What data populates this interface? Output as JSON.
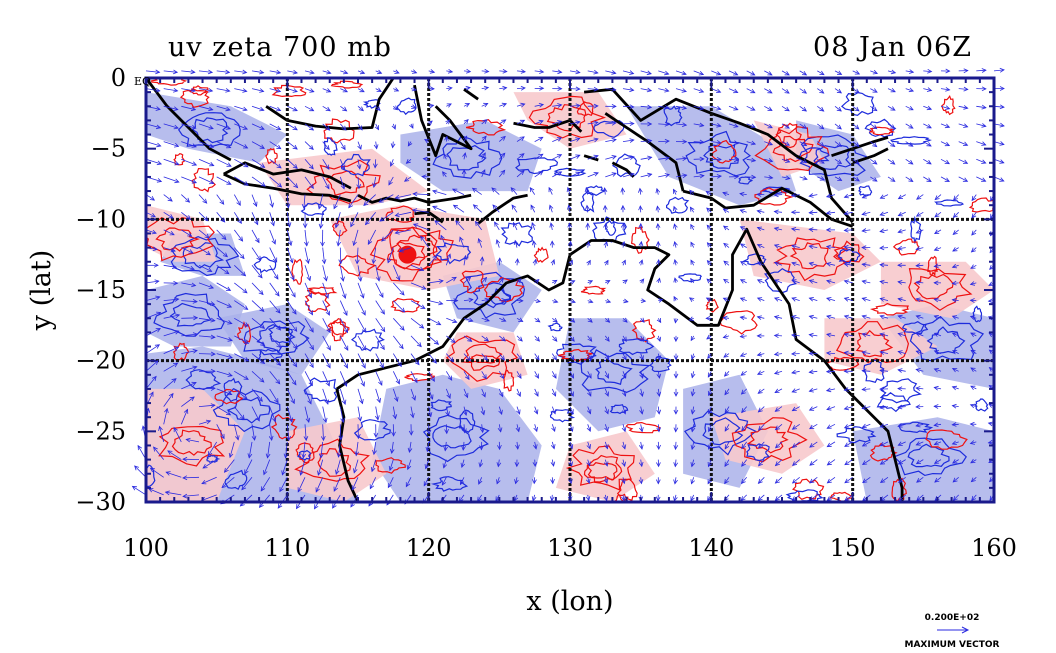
{
  "chart_data": {
    "type": "vector_contour_map",
    "title_left": "uv zeta 700 mb",
    "title_right": "08 Jan 06Z",
    "xlabel": "x (lon)",
    "ylabel": "y (lat)",
    "xlim": [
      100,
      160
    ],
    "ylim": [
      -30,
      0
    ],
    "x_ticks": [
      100,
      110,
      120,
      130,
      140,
      150,
      160
    ],
    "x_tick_labels": [
      "100",
      "110",
      "120",
      "130",
      "140",
      "150",
      "160"
    ],
    "y_ticks": [
      0,
      -5,
      -10,
      -15,
      -20,
      -25,
      -30
    ],
    "y_tick_labels": [
      "0",
      "−5",
      "−10",
      "−15",
      "−20",
      "−25",
      "−30"
    ],
    "grid_lon": [
      110,
      120,
      130,
      140,
      150
    ],
    "grid_lat": [
      -10,
      -20
    ],
    "eq_label": "EQ",
    "vector_scale_label": "0.200E+02",
    "vector_caption": "MAXIMUM VECTOR",
    "colors": {
      "positive_fill": "#f7c9cc",
      "negative_fill": "#aab2ea",
      "positive_contour": "#ee1111",
      "negative_contour": "#1e2cdc",
      "vector": "#2a2ae0",
      "coast": "#000000"
    },
    "cyclone_center": [
      118.5,
      -12.5
    ]
  }
}
